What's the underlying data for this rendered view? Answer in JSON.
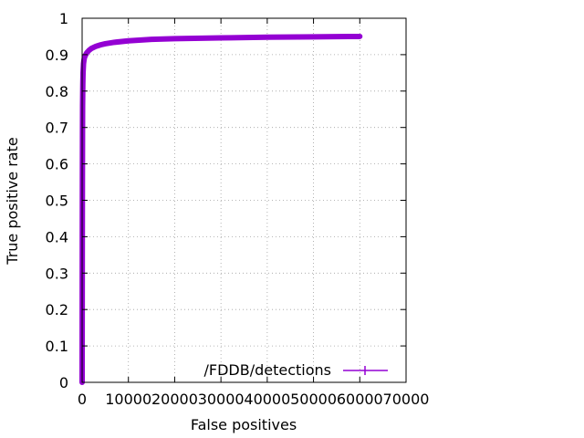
{
  "chart_data": {
    "type": "line",
    "xlabel": "False positives",
    "ylabel": "True positive rate",
    "xlim": [
      0,
      70000
    ],
    "ylim": [
      0,
      1
    ],
    "xticks": [
      0,
      10000,
      20000,
      30000,
      40000,
      50000,
      60000,
      70000
    ],
    "xtick_labels": [
      "0",
      "10000",
      "20000",
      "30000",
      "40000",
      "50000",
      "60000",
      "70000"
    ],
    "yticks": [
      0,
      0.1,
      0.2,
      0.3,
      0.4,
      0.5,
      0.6,
      0.7,
      0.8,
      0.9,
      1
    ],
    "ytick_labels": [
      "0",
      "0.1",
      "0.2",
      "0.3",
      "0.4",
      "0.5",
      "0.6",
      "0.7",
      "0.8",
      "0.9",
      "1"
    ],
    "grid": true,
    "legend_position": "bottom-right",
    "series": [
      {
        "name": "/FDDB/detections",
        "color": "#9400d3",
        "x": [
          0,
          20,
          40,
          60,
          80,
          100,
          150,
          200,
          300,
          400,
          500,
          700,
          1000,
          1500,
          2000,
          3000,
          4000,
          5000,
          7000,
          10000,
          15000,
          20000,
          30000,
          40000,
          50000,
          60000
        ],
        "y": [
          0,
          0.2,
          0.4,
          0.55,
          0.68,
          0.76,
          0.82,
          0.85,
          0.875,
          0.885,
          0.892,
          0.898,
          0.905,
          0.912,
          0.917,
          0.923,
          0.927,
          0.93,
          0.934,
          0.938,
          0.942,
          0.944,
          0.946,
          0.948,
          0.949,
          0.95
        ]
      }
    ]
  }
}
